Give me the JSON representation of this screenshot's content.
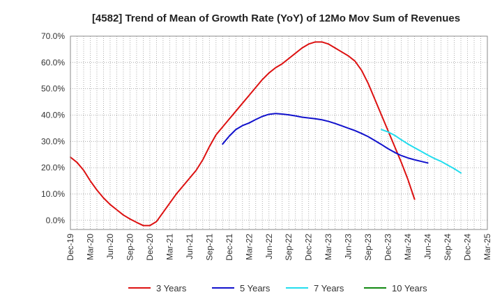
{
  "chart_data": {
    "type": "line",
    "title": "[4582]  Trend of Mean of Growth Rate (YoY) of 12Mo Mov Sum of Revenues",
    "xlabel": "",
    "ylabel": "",
    "ylim": [
      -3.5,
      70
    ],
    "yticks": [
      0,
      10,
      20,
      30,
      40,
      50,
      60,
      70
    ],
    "ytick_labels": [
      "0.0%",
      "10.0%",
      "20.0%",
      "30.0%",
      "40.0%",
      "50.0%",
      "60.0%",
      "70.0%"
    ],
    "xlim": [
      0,
      63
    ],
    "x_tick_labels": [
      "Dec-19",
      "Mar-20",
      "Jun-20",
      "Sep-20",
      "Dec-20",
      "Mar-21",
      "Jun-21",
      "Sep-21",
      "Dec-21",
      "Mar-22",
      "Jun-22",
      "Sep-22",
      "Dec-22",
      "Mar-23",
      "Jun-23",
      "Sep-23",
      "Dec-23",
      "Mar-24",
      "Jun-24",
      "Sep-24",
      "Dec-24",
      "Mar-25"
    ],
    "x_tick_positions": [
      0,
      3,
      6,
      9,
      12,
      15,
      18,
      21,
      24,
      27,
      30,
      33,
      36,
      39,
      42,
      45,
      48,
      51,
      54,
      57,
      60,
      63
    ],
    "grid": true,
    "legend_position": "bottom",
    "series": [
      {
        "name": "3 Years",
        "color": "#dd1111",
        "start": 0,
        "values": [
          24,
          22,
          19,
          15,
          11.5,
          8.5,
          6,
          4,
          2,
          0.5,
          -0.8,
          -2,
          -2,
          -0.5,
          3,
          6.5,
          10,
          13,
          16,
          19,
          23,
          28,
          32.5,
          35.5,
          38.5,
          41.5,
          44.5,
          47.5,
          50.5,
          53.5,
          56,
          58,
          59.5,
          61.5,
          63.5,
          65.5,
          67,
          67.8,
          67.8,
          67,
          65.5,
          64,
          62.5,
          60.5,
          57,
          52,
          46,
          40,
          34,
          28,
          22,
          15.5,
          8
        ]
      },
      {
        "name": "5 Years",
        "color": "#1111cc",
        "start": 23,
        "values": [
          29,
          32,
          34.5,
          36,
          37,
          38.3,
          39.5,
          40.3,
          40.6,
          40.4,
          40.1,
          39.7,
          39.2,
          38.9,
          38.6,
          38.2,
          37.6,
          36.8,
          35.9,
          35,
          34.1,
          33,
          31.8,
          30.3,
          28.8,
          27.2,
          25.8,
          24.6,
          23.7,
          23,
          22.4,
          21.8
        ]
      },
      {
        "name": "7 Years",
        "color": "#22ddee",
        "start": 47,
        "values": [
          34.5,
          33.6,
          32.3,
          30.6,
          29,
          27.6,
          26.2,
          24.8,
          23.5,
          22.4,
          21,
          19.6,
          18
        ]
      },
      {
        "name": "10 Years",
        "color": "#118811",
        "start": 0,
        "values": []
      }
    ]
  }
}
